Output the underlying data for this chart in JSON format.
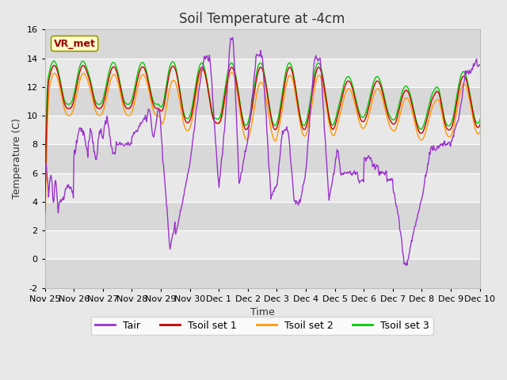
{
  "title": "Soil Temperature at -4cm",
  "xlabel": "Time",
  "ylabel": "Temperature (C)",
  "ylim": [
    -2,
    16
  ],
  "yticks": [
    -2,
    0,
    2,
    4,
    6,
    8,
    10,
    12,
    14,
    16
  ],
  "xtick_labels": [
    "Nov 25",
    "Nov 26",
    "Nov 27",
    "Nov 28",
    "Nov 29",
    "Nov 30",
    "Dec 1",
    "Dec 2",
    "Dec 3",
    "Dec 4",
    "Dec 5",
    "Dec 6",
    "Dec 7",
    "Dec 8",
    "Dec 9",
    "Dec 10"
  ],
  "colors": {
    "Tair": "#9933cc",
    "Tsoil1": "#cc0000",
    "Tsoil2": "#ff9900",
    "Tsoil3": "#00cc00"
  },
  "bg_bands": [
    "#e0e0e0",
    "#ebebeb"
  ],
  "annotation_box_color": "#ffffcc",
  "annotation_text": "VR_met",
  "annotation_text_color": "#990000",
  "legend_labels": [
    "Tair",
    "Tsoil set 1",
    "Tsoil set 2",
    "Tsoil set 3"
  ],
  "title_fontsize": 12,
  "axis_label_fontsize": 9,
  "tick_fontsize": 8,
  "legend_fontsize": 9
}
